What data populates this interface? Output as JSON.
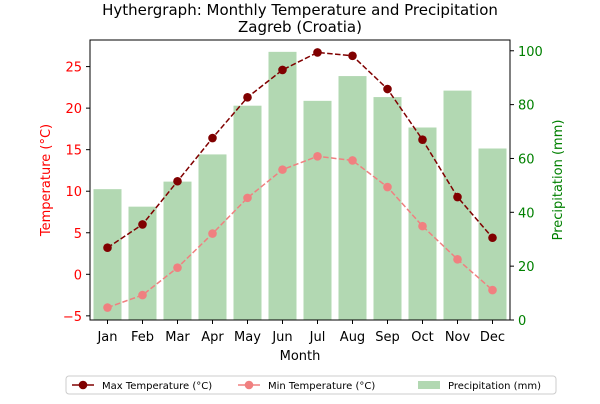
{
  "chart_data": {
    "type": "bar+line",
    "title_line1": "Hythergraph: Monthly Temperature and Precipitation",
    "title_line2": "Zagreb (Croatia)",
    "xlabel": "Month",
    "ylabel_left": "Temperature (°C)",
    "ylabel_right": "Precipitation (mm)",
    "categories": [
      "Jan",
      "Feb",
      "Mar",
      "Apr",
      "May",
      "Jun",
      "Jul",
      "Aug",
      "Sep",
      "Oct",
      "Nov",
      "Dec"
    ],
    "left_axis": {
      "ylim": [
        -5.5,
        28.2
      ],
      "ticks": [
        -5,
        0,
        5,
        10,
        15,
        20,
        25
      ],
      "color": "#ff0000"
    },
    "right_axis": {
      "ylim": [
        0,
        104
      ],
      "ticks": [
        0,
        20,
        40,
        60,
        80,
        100
      ],
      "color": "#008000"
    },
    "series": [
      {
        "name": "Max Temperature (°C)",
        "kind": "line",
        "axis": "left",
        "color": "#800000",
        "linestyle": "dashed",
        "values": [
          3.2,
          6.0,
          11.2,
          16.4,
          21.3,
          24.6,
          26.7,
          26.3,
          22.3,
          16.2,
          9.3,
          4.4
        ]
      },
      {
        "name": "Min Temperature (°C)",
        "kind": "line",
        "axis": "left",
        "color": "#f08080",
        "linestyle": "dashed",
        "values": [
          -4.0,
          -2.5,
          0.8,
          4.9,
          9.2,
          12.6,
          14.2,
          13.7,
          10.5,
          5.8,
          1.8,
          -1.9
        ]
      },
      {
        "name": "Precipitation (mm)",
        "kind": "bar",
        "axis": "right",
        "color": "#b2d8b2",
        "values": [
          48.6,
          42.1,
          51.4,
          61.5,
          79.6,
          99.6,
          81.4,
          90.6,
          82.8,
          71.5,
          85.2,
          63.7
        ]
      }
    ],
    "legend_position": "bottom-center",
    "grid": false
  }
}
